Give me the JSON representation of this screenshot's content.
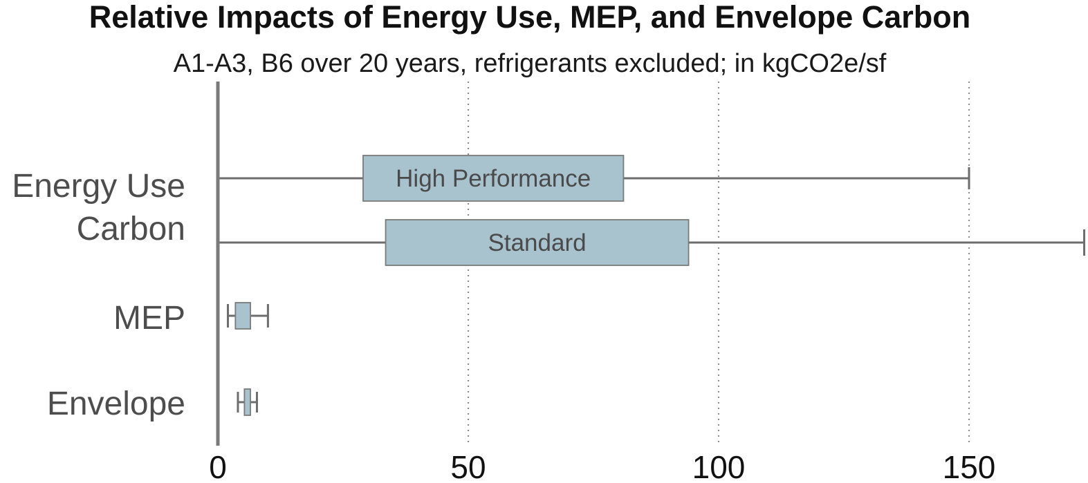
{
  "chart_data": {
    "type": "box",
    "orientation": "horizontal",
    "title": "Relative Impacts of Energy Use, MEP, and Envelope Carbon",
    "subtitle": "A1-A3, B6 over 20 years, refrigerants excluded; in kgCO2e/sf",
    "xlim": [
      0,
      173
    ],
    "xticks": [
      0,
      50,
      100,
      150
    ],
    "xtick_labels": [
      "0",
      "50",
      "100",
      "150"
    ],
    "grid": "vertical dotted lines at 50, 100, 150",
    "categories": [
      {
        "key": "energy",
        "label_lines": [
          "Energy Use",
          "Carbon"
        ]
      },
      {
        "key": "mep",
        "label_lines": [
          "MEP"
        ]
      },
      {
        "key": "envelope",
        "label_lines": [
          "Envelope"
        ]
      }
    ],
    "series": [
      {
        "category": "energy",
        "name": "High Performance",
        "label": "High Performance",
        "min": 0,
        "q1": 29,
        "q3": 81,
        "max": 150
      },
      {
        "category": "energy",
        "name": "Standard",
        "label": "Standard",
        "min": 0,
        "q1": 33.5,
        "q3": 94,
        "max": 173
      },
      {
        "category": "mep",
        "name": "MEP",
        "label": "",
        "min": 2,
        "q1": 3.5,
        "q3": 6.5,
        "max": 10
      },
      {
        "category": "envelope",
        "name": "Envelope",
        "label": "",
        "min": 4,
        "q1": 5.3,
        "q3": 6.5,
        "max": 7.8
      }
    ],
    "colors": {
      "box_fill": "#a8c2ce",
      "box_stroke": "#7a7a7a",
      "whisker": "#6d6d6d",
      "axis": "#7a7a7a",
      "grid": "#8a8a8a",
      "category_text": "#4d4d4d",
      "title_text": "#111111"
    }
  }
}
